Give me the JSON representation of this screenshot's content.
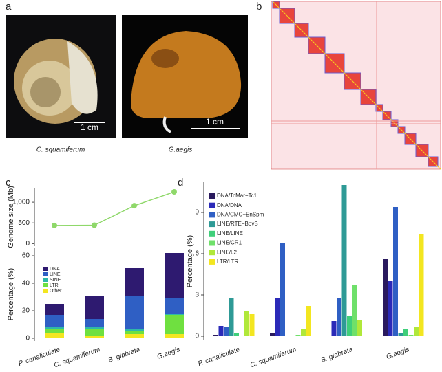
{
  "panels": [
    "a",
    "b",
    "c",
    "d"
  ],
  "photos": [
    {
      "caption": "C. squamiferum",
      "scale_bar": "1 cm"
    },
    {
      "caption": "G.aegis",
      "scale_bar": "1 cm"
    }
  ],
  "chart_data": [
    {
      "type": "line",
      "y_label": "Genome size (Mb)",
      "values": [
        440,
        445,
        916,
        1250
      ],
      "color": "#8fd86a",
      "ylim": [
        -60,
        1350
      ],
      "yticks": [
        0,
        500,
        {
          "value": 1000,
          "label": "1,000"
        }
      ]
    },
    {
      "type": "stacked_bar",
      "y_label": "Percentage (%)",
      "categories": [
        "P. canaliculate",
        "C. squamiferum",
        "B. glabrata",
        "G.aegis"
      ],
      "series": [
        {
          "name": "Other",
          "color": "#f3e620",
          "values": [
            4,
            2,
            3,
            3
          ]
        },
        {
          "name": "LTR",
          "color": "#6fe040",
          "values": [
            3,
            5,
            2,
            14
          ]
        },
        {
          "name": "SINE",
          "color": "#2fb8a8",
          "values": [
            1,
            1,
            2,
            1
          ]
        },
        {
          "name": "LINE",
          "color": "#2f5fc4",
          "values": [
            9,
            6,
            24,
            11
          ]
        },
        {
          "name": "DNA",
          "color": "#2e1a70",
          "values": [
            8,
            17,
            20,
            33
          ]
        }
      ],
      "legend": "upper left",
      "ylim": [
        -2,
        66
      ],
      "yticks": [
        0,
        20,
        40,
        60
      ]
    },
    {
      "type": "bar",
      "y_label": "Percentage (%)",
      "categories": [
        "P. canaliculate",
        "C. squamiferum",
        "B. glabrata",
        "G.aegis"
      ],
      "series": [
        {
          "name": "DNA/TcMar−Tc1",
          "color": "#2a1a5e",
          "values": [
            0.1,
            0.2,
            0.05,
            5.6
          ]
        },
        {
          "name": "DNA/DNA",
          "color": "#2b2ab8",
          "values": [
            0.75,
            2.8,
            1.1,
            4.0
          ]
        },
        {
          "name": "DNA/CMC−EnSpm",
          "color": "#2f5fc4",
          "values": [
            0.7,
            6.8,
            2.8,
            9.4
          ]
        },
        {
          "name": "LINE/RTE−BovB",
          "color": "#2e9a96",
          "values": [
            2.8,
            0.05,
            11.0,
            0.2
          ]
        },
        {
          "name": "LINE/LINE",
          "color": "#3fcf7a",
          "values": [
            0.25,
            0.05,
            1.5,
            0.5
          ]
        },
        {
          "name": "LINE/CR1",
          "color": "#6fe06a",
          "values": [
            0.05,
            0.1,
            3.7,
            0.1
          ]
        },
        {
          "name": "LINE/L2",
          "color": "#b0e83a",
          "values": [
            1.8,
            0.5,
            1.2,
            0.7
          ]
        },
        {
          "name": "LTR/LTR",
          "color": "#f3e620",
          "values": [
            1.6,
            2.2,
            0.05,
            7.4
          ]
        }
      ],
      "legend": "upper left",
      "ylim": [
        -0.3,
        11.2
      ],
      "yticks": [
        0,
        3,
        6,
        9
      ]
    }
  ]
}
